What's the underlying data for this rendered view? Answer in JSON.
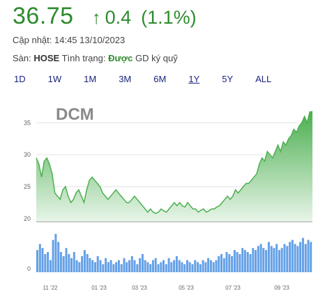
{
  "quote": {
    "price": "36.75",
    "arrow": "↑",
    "change": "0.4",
    "change_pct": "(1.1%)",
    "updated_label": "Cập nhật:",
    "updated_time": "14:45 13/10/2023",
    "exchange_label": "Sàn:",
    "exchange": "HOSE",
    "status_label": "Tình trạng:",
    "status_value": "Được",
    "status_suffix": "GD ký quỹ"
  },
  "ranges": [
    {
      "label": "1D"
    },
    {
      "label": "1W"
    },
    {
      "label": "1M"
    },
    {
      "label": "3M"
    },
    {
      "label": "6M"
    },
    {
      "label": "1Y",
      "active": true
    },
    {
      "label": "5Y"
    },
    {
      "label": "ALL"
    }
  ],
  "colors": {
    "accent_green": "#2e8b2e",
    "area_top": "#4caf50",
    "area_bottom": "#e8f5e9",
    "volume": "#64a0e6",
    "range_text": "#1a237e"
  },
  "chart_data": {
    "type": "area",
    "title": "DCM",
    "y_ticks": [
      20,
      25,
      30,
      35
    ],
    "ylim": [
      19,
      37
    ],
    "baseline": 19.5,
    "volume_tick": "0",
    "x_labels": [
      "11 '22",
      "01 '23",
      "03 '23",
      "05 '23",
      "07 '23",
      "09 '23"
    ],
    "price": [
      29.5,
      28.5,
      26.5,
      29,
      29.5,
      28.5,
      27,
      24,
      23.5,
      23,
      24.5,
      25,
      23.5,
      22.5,
      23,
      24,
      24.5,
      23.5,
      22.5,
      24.5,
      26,
      26.5,
      26,
      25.5,
      25,
      24,
      23.5,
      23,
      23.5,
      24,
      24.5,
      24,
      23.5,
      23,
      22.5,
      22.5,
      23,
      23.5,
      23,
      22.5,
      22,
      21.5,
      21,
      21.5,
      21,
      20.8,
      21,
      21.5,
      21.2,
      21,
      21.5,
      22,
      22.5,
      22,
      22.5,
      22,
      21.8,
      22.5,
      22,
      21.5,
      21.5,
      21,
      21.3,
      21.5,
      21,
      21.2,
      21.5,
      21.5,
      21.8,
      22,
      22.5,
      23,
      23.5,
      23,
      23.5,
      24.5,
      24,
      24.5,
      25,
      25.5,
      25.5,
      26,
      26.5,
      27,
      28.5,
      29.5,
      29,
      30.5,
      30,
      29.5,
      30.5,
      31.5,
      30.5,
      32,
      31.5,
      32.5,
      33,
      34,
      33.5,
      34.5,
      35,
      36,
      35,
      36.7,
      36.75
    ],
    "volume": [
      0.55,
      0.7,
      0.6,
      0.45,
      0.5,
      0.3,
      0.8,
      0.95,
      0.75,
      0.5,
      0.4,
      0.6,
      0.45,
      0.35,
      0.5,
      0.3,
      0.25,
      0.4,
      0.55,
      0.45,
      0.35,
      0.3,
      0.25,
      0.4,
      0.3,
      0.2,
      0.35,
      0.25,
      0.3,
      0.2,
      0.25,
      0.3,
      0.2,
      0.35,
      0.25,
      0.3,
      0.4,
      0.3,
      0.2,
      0.35,
      0.45,
      0.3,
      0.25,
      0.2,
      0.3,
      0.35,
      0.2,
      0.25,
      0.3,
      0.2,
      0.35,
      0.25,
      0.3,
      0.4,
      0.3,
      0.25,
      0.2,
      0.3,
      0.25,
      0.2,
      0.3,
      0.25,
      0.2,
      0.3,
      0.25,
      0.35,
      0.3,
      0.25,
      0.3,
      0.4,
      0.45,
      0.35,
      0.5,
      0.45,
      0.4,
      0.55,
      0.5,
      0.45,
      0.6,
      0.55,
      0.5,
      0.45,
      0.6,
      0.55,
      0.65,
      0.7,
      0.6,
      0.55,
      0.75,
      0.65,
      0.6,
      0.7,
      0.55,
      0.6,
      0.7,
      0.65,
      0.75,
      0.8,
      0.7,
      0.65,
      0.75,
      0.85,
      0.7,
      0.8,
      0.75
    ]
  }
}
